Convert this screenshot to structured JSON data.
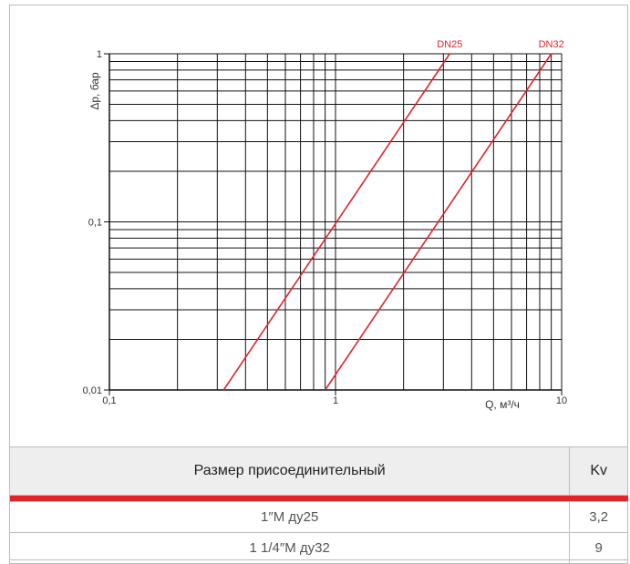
{
  "chart_data": {
    "type": "line",
    "xscale": "log",
    "yscale": "log",
    "xlim": [
      0.1,
      10
    ],
    "ylim": [
      0.01,
      1
    ],
    "xlabel": "Q, м³/ч",
    "ylabel": "Δp, бар",
    "x_tick_labels": [
      {
        "value": 0.1,
        "label": "0,1"
      },
      {
        "value": 1,
        "label": "1"
      },
      {
        "value": 10,
        "label": "10"
      }
    ],
    "y_tick_labels": [
      {
        "value": 0.01,
        "label": "0,01"
      },
      {
        "value": 0.1,
        "label": "0,1"
      },
      {
        "value": 1,
        "label": "1"
      }
    ],
    "grid": true,
    "series": [
      {
        "name": "DN25",
        "color": "#e2232a",
        "kv": 3.2,
        "points": [
          [
            0.32,
            0.01
          ],
          [
            3.2,
            1.0
          ]
        ]
      },
      {
        "name": "DN32",
        "color": "#e2232a",
        "kv": 9,
        "points": [
          [
            0.9,
            0.01
          ],
          [
            9.0,
            1.0
          ]
        ]
      }
    ]
  },
  "table": {
    "headers": [
      "Размер присоединительный",
      "Kv"
    ],
    "rows": [
      [
        "1″M ду25",
        "3,2"
      ],
      [
        "1 1/4″M ду32",
        "9"
      ]
    ],
    "accent_color": "#e2232a"
  }
}
